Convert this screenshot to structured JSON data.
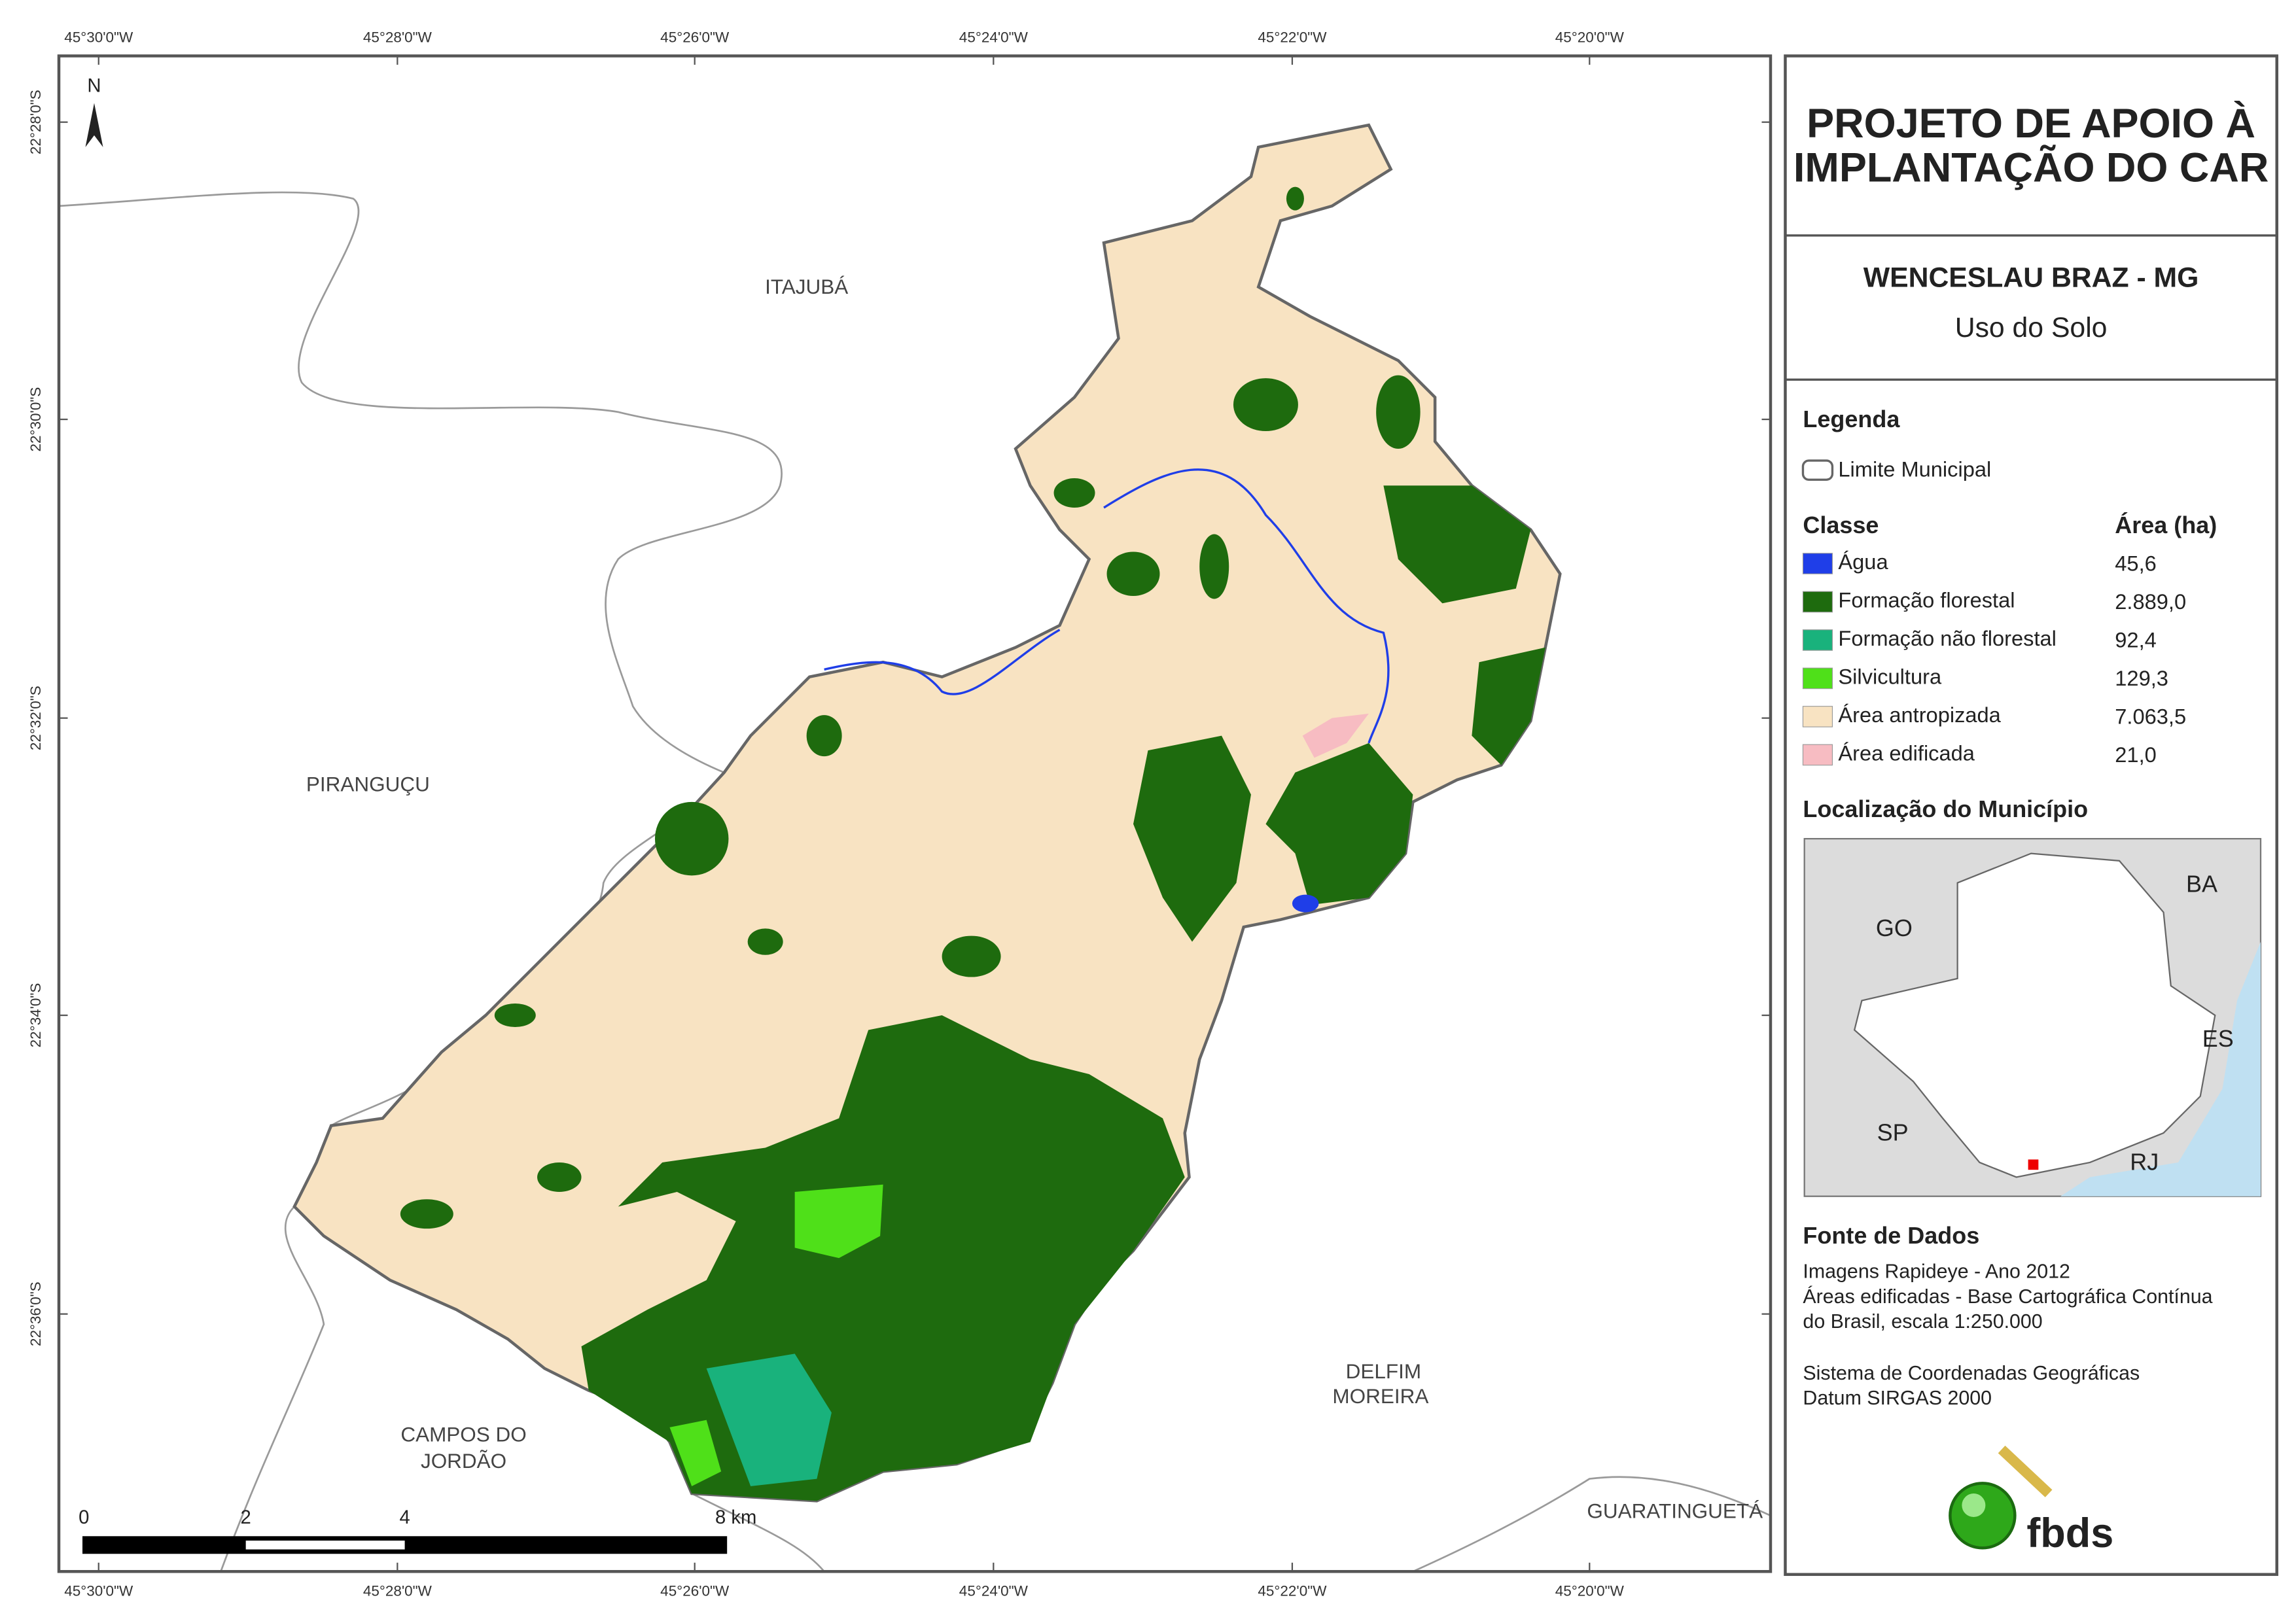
{
  "map": {
    "coords": {
      "top": [
        "45°30'0\"W",
        "45°28'0\"W",
        "45°26'0\"W",
        "45°24'0\"W",
        "45°22'0\"W",
        "45°20'0\"W"
      ],
      "bottom": [
        "45°30'0\"W",
        "45°28'0\"W",
        "45°26'0\"W",
        "45°24'0\"W",
        "45°22'0\"W",
        "45°20'0\"W"
      ],
      "left": [
        "22°28'0\"S",
        "22°30'0\"S",
        "22°32'0\"S",
        "22°34'0\"S",
        "22°36'0\"S"
      ]
    },
    "places": [
      "ITAJUBÁ",
      "PIRANGUÇU",
      "CAMPOS DO",
      "JORDÃO",
      "DELFIM",
      "MOREIRA",
      "GUARATINGUETÁ"
    ],
    "north": "N",
    "scale_bar": [
      "0",
      "2",
      "4",
      "8 km"
    ]
  },
  "panel": {
    "title": [
      "PROJETO DE APOIO À",
      "IMPLANTAÇÃO DO CAR"
    ],
    "municipality": "WENCESLAU BRAZ - MG",
    "subtitle": "Uso do Solo",
    "legend": {
      "heading": "Legenda",
      "boundary": "Limite Municipal",
      "class_header": "Classe",
      "area_header": "Área (ha)",
      "classes": [
        {
          "name": "Água",
          "area": "45,6",
          "color": "#1f3ee8"
        },
        {
          "name": "Formação florestal",
          "area": "2.889,0",
          "color": "#1e6b0e"
        },
        {
          "name": "Formação não florestal",
          "area": "92,4",
          "color": "#19b27c"
        },
        {
          "name": "Silvicultura",
          "area": "129,3",
          "color": "#4fe019"
        },
        {
          "name": "Área antropizada",
          "area": "7.063,5",
          "color": "#f8e3c2"
        },
        {
          "name": "Área edificada",
          "area": "21,0",
          "color": "#f7bcc2"
        }
      ]
    },
    "location": {
      "heading": "Localização do Município",
      "states": [
        "GO",
        "BA",
        "ES",
        "SP",
        "RJ"
      ]
    },
    "sources": {
      "heading": "Fonte de Dados",
      "lines": [
        "Imagens Rapideye - Ano 2012",
        "Áreas edificadas - Base Cartográfica Contínua",
        "do Brasil, escala 1:250.000",
        "Sistema de Coordenadas Geográficas",
        "Datum SIRGAS 2000"
      ]
    },
    "logo": "fbds"
  }
}
